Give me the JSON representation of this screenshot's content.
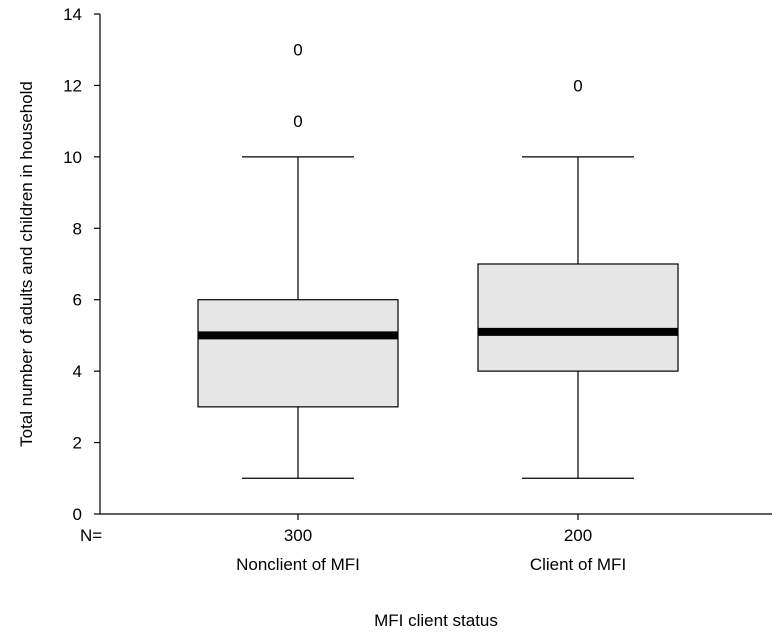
{
  "chart_data": {
    "type": "box",
    "title": "",
    "xlabel": "MFI client status",
    "ylabel": "Total number of adults and children in household",
    "ylim": [
      0,
      14
    ],
    "yticks": [
      "0",
      "2",
      "4",
      "6",
      "8",
      "10",
      "12",
      "14"
    ],
    "n_label": "N=",
    "grid": false,
    "colors": {
      "box_fill": "#e6e6e6",
      "median": "#000000",
      "line": "#000000"
    },
    "boxes": [
      {
        "category": "Nonclient of MFI",
        "n": "300",
        "whisker_low": 1,
        "q1": 3,
        "median": 5,
        "q3": 6,
        "whisker_high": 10,
        "outliers": [
          {
            "value": 11,
            "marker": "0"
          },
          {
            "value": 13,
            "marker": "0"
          }
        ]
      },
      {
        "category": "Client of MFI",
        "n": "200",
        "whisker_low": 1,
        "q1": 4,
        "median": 5.1,
        "q3": 7,
        "whisker_high": 10,
        "outliers": [
          {
            "value": 12,
            "marker": "0"
          }
        ]
      }
    ]
  }
}
